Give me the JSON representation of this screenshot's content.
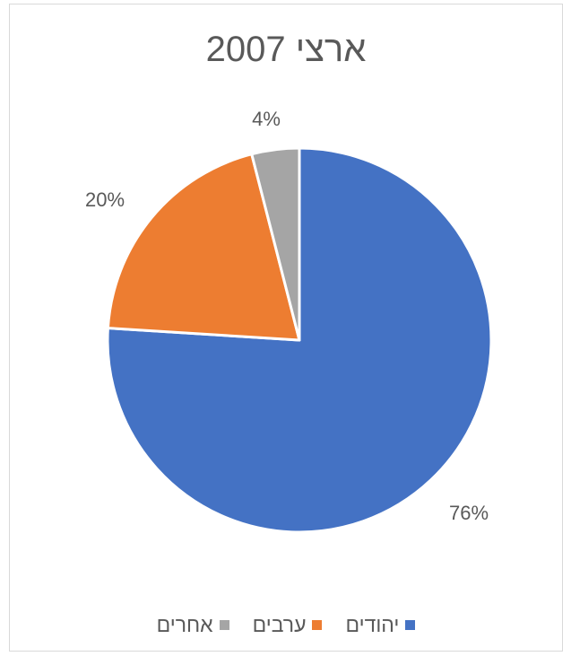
{
  "chart_data": {
    "type": "pie",
    "title": "ארצי 2007",
    "slices": [
      {
        "name": "יהודים",
        "value": 76,
        "label": "76%",
        "color": "#4472c4"
      },
      {
        "name": "ערבים",
        "value": 20,
        "label": "20%",
        "color": "#ed7d31"
      },
      {
        "name": "אחרים",
        "value": 4,
        "label": "4%",
        "color": "#a5a5a5"
      }
    ],
    "start_angle": "12 o'clock, clockwise",
    "legend_position": "bottom",
    "data_label_color": "#595959"
  }
}
